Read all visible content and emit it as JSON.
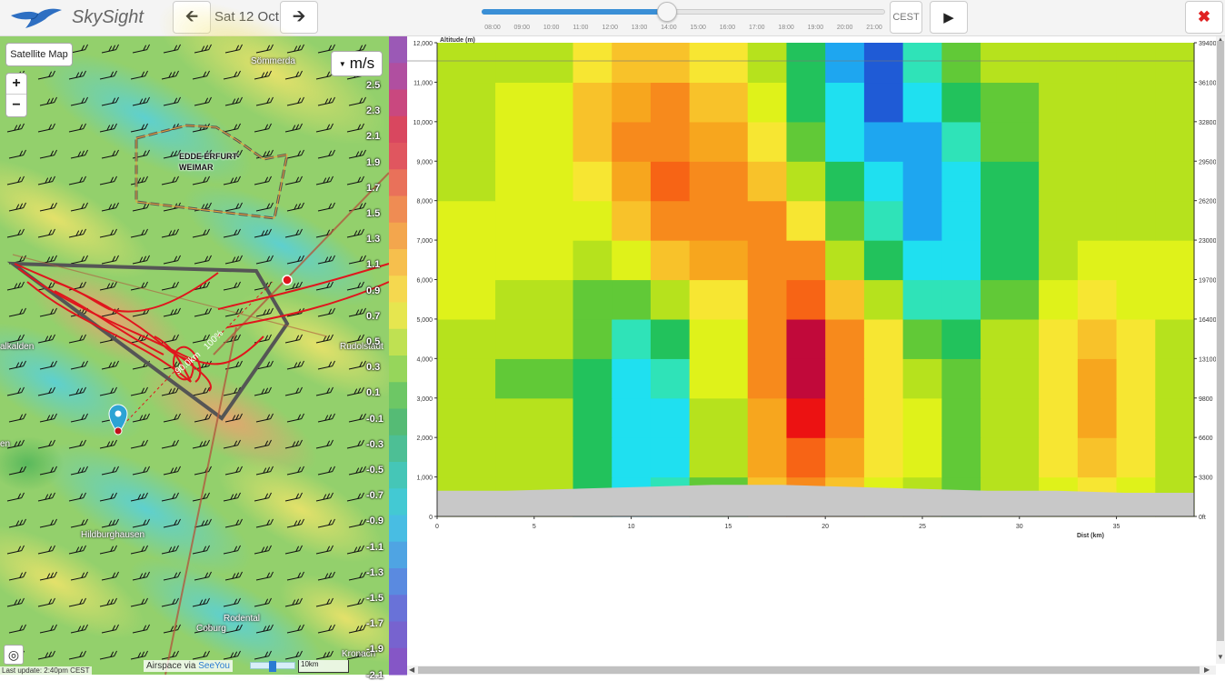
{
  "header": {
    "app_title": "SkySight",
    "date": "Sat 12 Oct",
    "timezone": "CEST",
    "prev_icon": "arrow-left-icon",
    "next_icon": "arrow-right-icon",
    "play_icon": "play-icon",
    "close_icon": "close-icon",
    "slider_ticks": [
      "08:00",
      "09:00",
      "10:00",
      "11:00",
      "12:00",
      "13:00",
      "14:00",
      "15:00",
      "16:00",
      "17:00",
      "18:00",
      "19:00",
      "20:00",
      "21:00"
    ],
    "slider_value": 0.46
  },
  "map": {
    "satellite_button": "Satellite Map",
    "zoom_in": "+",
    "zoom_out": "−",
    "unit": "m/s",
    "legend_labels": [
      "2.5",
      "2.3",
      "2.1",
      "1.9",
      "1.7",
      "1.5",
      "1.3",
      "1.1",
      "0.9",
      "0.7",
      "0.5",
      "0.3",
      "0.1",
      "-0.1",
      "-0.3",
      "-0.5",
      "-0.7",
      "-0.9",
      "-1.1",
      "-1.3",
      "-1.5",
      "-1.7",
      "-1.9",
      "-2.1"
    ],
    "legend_colors": [
      "#9b59b6",
      "#b04fa0",
      "#c9487f",
      "#d9475f",
      "#e0565f",
      "#e9715a",
      "#ef8c53",
      "#f3a64d",
      "#f6bf4d",
      "#f5d84f",
      "#e6e64f",
      "#bfe152",
      "#96d65b",
      "#6dc765",
      "#55bb75",
      "#4dbf95",
      "#45c6b7",
      "#43c9d3",
      "#48bde3",
      "#4fa4e3",
      "#5a8ae0",
      "#6972d8",
      "#7763cf",
      "#8556c6"
    ],
    "places": [
      "Sömmerda",
      "EDDE ERFURT-",
      "WEIMAR",
      "Rudolstadt",
      "alkalden",
      "Hildburghausen",
      "Rodental",
      "Coburg",
      "Kronach",
      "en"
    ],
    "airspace_labels": [
      "EDDE ERFURT-",
      "WEIMAR"
    ],
    "locate_icon": "crosshair-icon",
    "last_update": "Last update: 2:40pm CEST",
    "airspace_credit_prefix": "Airspace via ",
    "airspace_credit_link": "SeeYou",
    "scale": "10km",
    "task_labels": [
      "100%",
      "90.0km"
    ]
  },
  "chart_data": {
    "type": "heatmap",
    "title": "",
    "xlabel": "Dist (km)",
    "ylabel": "Altitude (m)",
    "x_ticks": [
      0,
      5,
      10,
      15,
      20,
      25,
      30,
      35
    ],
    "y_ticks": [
      0,
      1000,
      2000,
      3000,
      4000,
      5000,
      6000,
      7000,
      8000,
      9000,
      10000,
      11000,
      12000
    ],
    "y_tick_labels": [
      "0",
      "1,000",
      "2,000",
      "3,000",
      "4,000",
      "5,000",
      "6,000",
      "7,000",
      "8,000",
      "9,000",
      "10,000",
      "11,000",
      "12,000"
    ],
    "y2_tick_labels": [
      "0ft",
      "3300",
      "6600",
      "9800",
      "13100",
      "16400",
      "19700",
      "23000",
      "26200",
      "29500",
      "32800",
      "36100",
      "39400"
    ],
    "xlim": [
      0,
      39
    ],
    "ylim": [
      0,
      12000
    ],
    "terrain_height_m": [
      650,
      650,
      700,
      750,
      800,
      800,
      750,
      700,
      650,
      650,
      600,
      600
    ],
    "columns_km": [
      0,
      3,
      7,
      9,
      11,
      13,
      16,
      18,
      20,
      22,
      24,
      26,
      28,
      31,
      33,
      35,
      37,
      39
    ],
    "rows_m": [
      0,
      1000,
      2000,
      3000,
      4000,
      5000,
      6000,
      7000,
      8000,
      9000,
      10000,
      11000,
      12000
    ],
    "values_ms": [
      [
        0.2,
        0.2,
        -0.3,
        -0.8,
        -0.6,
        0.1,
        0.9,
        1.2,
        0.8,
        0.5,
        0.3,
        0.1,
        0.2,
        0.4,
        0.6,
        0.5,
        0.2
      ],
      [
        0.3,
        0.3,
        -0.4,
        -1.0,
        -0.8,
        0.2,
        1.0,
        1.5,
        1.0,
        0.6,
        0.4,
        0.1,
        0.3,
        0.6,
        0.8,
        0.6,
        0.2
      ],
      [
        0.2,
        0.2,
        -0.3,
        -1.1,
        -0.9,
        0.3,
        1.1,
        1.9,
        1.2,
        0.7,
        0.4,
        0.1,
        0.3,
        0.7,
        1.0,
        0.7,
        0.2
      ],
      [
        0.2,
        0.1,
        -0.2,
        -0.9,
        -0.7,
        0.4,
        1.2,
        2.2,
        1.3,
        0.7,
        0.3,
        0.0,
        0.3,
        0.7,
        1.1,
        0.7,
        0.2
      ],
      [
        0.3,
        0.2,
        -0.1,
        -0.5,
        -0.3,
        0.5,
        1.3,
        2.1,
        1.2,
        0.6,
        0.0,
        -0.3,
        0.2,
        0.6,
        0.9,
        0.6,
        0.3
      ],
      [
        0.4,
        0.3,
        0.1,
        0.0,
        0.3,
        0.7,
        1.3,
        1.7,
        0.8,
        0.3,
        -0.5,
        -0.6,
        0.0,
        0.4,
        0.7,
        0.5,
        0.4
      ],
      [
        0.5,
        0.4,
        0.3,
        0.5,
        0.9,
        1.1,
        1.4,
        1.2,
        0.3,
        -0.2,
        -0.9,
        -0.8,
        -0.2,
        0.3,
        0.4,
        0.4,
        0.4
      ],
      [
        0.4,
        0.4,
        0.5,
        0.9,
        1.3,
        1.4,
        1.2,
        0.7,
        0.0,
        -0.5,
        -1.2,
        -0.9,
        -0.3,
        0.3,
        0.3,
        0.3,
        0.3
      ],
      [
        0.3,
        0.4,
        0.6,
        1.1,
        1.5,
        1.3,
        0.9,
        0.3,
        -0.4,
        -0.9,
        -1.4,
        -0.8,
        -0.2,
        0.3,
        0.3,
        0.3,
        0.3
      ],
      [
        0.2,
        0.4,
        0.8,
        1.2,
        1.4,
        1.1,
        0.6,
        0.0,
        -0.8,
        -1.3,
        -1.2,
        -0.5,
        0.0,
        0.3,
        0.3,
        0.3,
        0.3
      ],
      [
        0.3,
        0.4,
        0.8,
        1.1,
        1.2,
        0.9,
        0.4,
        -0.2,
        -1.0,
        -1.6,
        -0.9,
        -0.2,
        0.1,
        0.3,
        0.3,
        0.3,
        0.3
      ],
      [
        0.3,
        0.3,
        0.6,
        0.8,
        0.8,
        0.6,
        0.3,
        -0.3,
        -1.2,
        -1.8,
        -0.6,
        0.0,
        0.2,
        0.3,
        0.3,
        0.3,
        0.3
      ]
    ]
  }
}
